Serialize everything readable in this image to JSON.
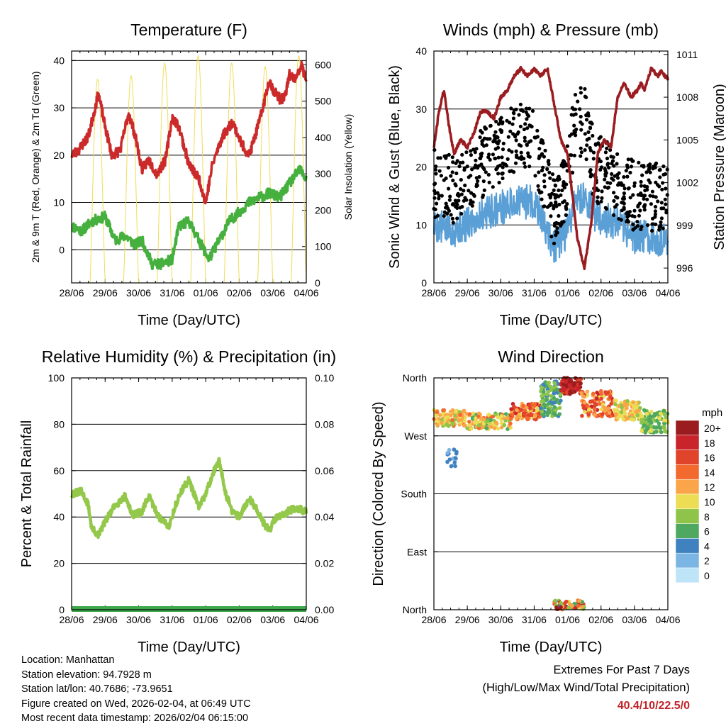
{
  "chart_data": [
    {
      "type": "line",
      "title": "Temperature (F)",
      "xlabel": "Time (Day/UTC)",
      "ylabel": "2m & 9m T (Red, Orange) & 2m Td (Green)",
      "y2label": "Solar Insolation (Yellow)",
      "categories": [
        "28/06",
        "29/06",
        "30/06",
        "31/06",
        "01/06",
        "02/06",
        "03/06",
        "04/06"
      ],
      "ylim": [
        -7,
        42
      ],
      "yticks": [
        0,
        10,
        20,
        30,
        40
      ],
      "y2lim": [
        0,
        638
      ],
      "y2ticks": [
        0,
        100,
        200,
        300,
        400,
        500,
        600
      ],
      "grid": true,
      "series": [
        {
          "name": "2m & 9m T",
          "color": "#cc2a2a",
          "axis": "left",
          "x": [
            0,
            0.2,
            0.5,
            0.8,
            1.0,
            1.2,
            1.45,
            1.7,
            1.9,
            2.1,
            2.3,
            2.55,
            2.8,
            3.0,
            3.2,
            3.5,
            3.8,
            4.0,
            4.2,
            4.5,
            4.8,
            5.1,
            5.3,
            5.6,
            5.9,
            6.0,
            6.2,
            6.35,
            6.5,
            6.7,
            6.85,
            7.0
          ],
          "y": [
            20,
            21,
            24,
            33,
            26,
            20,
            21,
            29,
            24,
            17,
            19,
            16,
            19,
            28,
            26,
            18,
            15,
            10,
            18,
            24,
            27,
            22,
            20,
            27,
            36,
            34,
            32,
            32,
            37,
            36,
            39,
            36
          ]
        },
        {
          "name": "2m Td",
          "color": "#46b03e",
          "axis": "left",
          "x": [
            0,
            0.3,
            0.6,
            1.0,
            1.3,
            1.6,
            1.9,
            2.1,
            2.4,
            2.7,
            3.0,
            3.2,
            3.5,
            3.8,
            4.1,
            4.4,
            4.7,
            5.0,
            5.3,
            5.6,
            5.9,
            6.2,
            6.5,
            6.8,
            7.0
          ],
          "y": [
            5,
            4,
            6,
            7,
            2,
            3,
            1,
            2,
            -3,
            -3,
            -2,
            5,
            6,
            2,
            -2,
            2,
            6,
            8,
            10,
            11,
            12,
            11,
            14,
            17,
            15
          ]
        },
        {
          "name": "Solar Insolation",
          "color": "#f1dc57",
          "axis": "right",
          "daily_peaks": [
            560,
            570,
            605,
            625,
            605,
            595,
            625
          ]
        }
      ]
    },
    {
      "type": "scatter",
      "title": "Winds (mph) & Pressure (mb)",
      "xlabel": "Time (Day/UTC)",
      "ylabel": "Sonic Wind & Gust (Blue, Black)",
      "y2label": "Station Pressure (Maroon)",
      "categories": [
        "28/06",
        "29/06",
        "30/06",
        "31/06",
        "01/06",
        "02/06",
        "03/06",
        "04/06"
      ],
      "ylim": [
        0,
        40
      ],
      "yticks": [
        0,
        10,
        20,
        30,
        40
      ],
      "y2lim": [
        994.96,
        1011.24
      ],
      "y2ticks": [
        996,
        999,
        1002,
        1005,
        1008,
        1011
      ],
      "grid": true,
      "series": [
        {
          "name": "Sonic Wind",
          "color": "#5a9fd6",
          "axis": "left",
          "x": [
            0,
            0.5,
            1.0,
            1.5,
            2.0,
            2.5,
            3.0,
            3.3,
            3.6,
            4.0,
            4.2,
            4.5,
            4.8,
            5.1,
            5.5,
            6.0,
            6.5,
            7.0
          ],
          "y": [
            10,
            9,
            10,
            12,
            13,
            14,
            14,
            10,
            6,
            9,
            14,
            15,
            12,
            11,
            10,
            8,
            8,
            7
          ]
        },
        {
          "name": "Gust",
          "color": "#000000",
          "axis": "left",
          "x": [
            0,
            0.5,
            1.0,
            1.5,
            2.0,
            2.5,
            3.0,
            3.3,
            3.6,
            4.0,
            4.2,
            4.5,
            4.8,
            5.1,
            5.5,
            6.0,
            6.5,
            7.0
          ],
          "y": [
            17,
            16,
            18,
            21,
            23,
            25,
            24,
            18,
            12,
            18,
            27,
            28,
            20,
            19,
            17,
            15,
            15,
            14
          ]
        },
        {
          "name": "Station Pressure",
          "color": "#9a1c20",
          "axis": "right",
          "x": [
            0,
            0.15,
            0.3,
            0.45,
            0.6,
            0.8,
            1.0,
            1.2,
            1.4,
            1.6,
            1.8,
            2.0,
            2.2,
            2.4,
            2.6,
            2.8,
            3.0,
            3.2,
            3.4,
            3.6,
            3.8,
            4.0,
            4.15,
            4.3,
            4.5,
            4.7,
            4.9,
            5.1,
            5.3,
            5.5,
            5.7,
            5.9,
            6.1,
            6.2,
            6.3,
            6.5,
            6.7,
            6.8,
            6.9,
            7.0
          ],
          "y": [
            1004.5,
            1007,
            1008.5,
            1006,
            1004,
            1005,
            1004.5,
            1005.5,
            1007,
            1007,
            1006.5,
            1008,
            1008.5,
            1009.5,
            1010,
            1009.5,
            1010,
            1009.5,
            1010,
            1007.5,
            1005,
            1004,
            1001,
            998,
            996,
            999,
            1004,
            1005,
            1004.5,
            1008,
            1009,
            1008,
            1008.5,
            1009,
            1008.5,
            1010,
            1009.5,
            1009.8,
            1009.5,
            1009.3
          ]
        }
      ]
    },
    {
      "type": "line",
      "title": "Relative Humidity (%) & Precipitation (in)",
      "xlabel": "Time (Day/UTC)",
      "ylabel": "Percent & Total Rainfall",
      "categories": [
        "28/06",
        "29/06",
        "30/06",
        "31/06",
        "01/06",
        "02/06",
        "03/06",
        "04/06"
      ],
      "ylim": [
        0,
        100
      ],
      "yticks": [
        0,
        20,
        40,
        60,
        80,
        100
      ],
      "y2lim": [
        0,
        0.1
      ],
      "y2ticks": [
        "0.00",
        "0.02",
        "0.04",
        "0.06",
        "0.08",
        "0.10"
      ],
      "grid": true,
      "series": [
        {
          "name": "Relative Humidity",
          "color": "#93c84a",
          "axis": "left",
          "x": [
            0,
            0.3,
            0.5,
            0.6,
            0.8,
            1.0,
            1.3,
            1.6,
            1.8,
            2.1,
            2.3,
            2.6,
            2.9,
            3.1,
            3.3,
            3.5,
            3.8,
            4.0,
            4.25,
            4.4,
            4.6,
            4.8,
            5.0,
            5.3,
            5.5,
            5.7,
            5.9,
            6.1,
            6.4,
            6.7,
            7.0
          ],
          "y": [
            50,
            51,
            45,
            35,
            32,
            38,
            45,
            49,
            41,
            42,
            49,
            40,
            36,
            45,
            52,
            56,
            44,
            50,
            60,
            64,
            50,
            42,
            40,
            48,
            44,
            38,
            34,
            40,
            42,
            44,
            42
          ]
        },
        {
          "name": "Total Precipitation",
          "color": "#3ea84a",
          "axis": "right",
          "x": [
            0,
            7
          ],
          "y": [
            0,
            0
          ]
        }
      ]
    },
    {
      "type": "scatter",
      "title": "Wind Direction",
      "xlabel": "Time (Day/UTC)",
      "ylabel": "Direction (Colored By Speed)",
      "categories": [
        "28/06",
        "29/06",
        "30/06",
        "31/06",
        "01/06",
        "02/06",
        "03/06",
        "04/06"
      ],
      "ylim": [
        0,
        360
      ],
      "ytick_values": [
        0,
        90,
        180,
        270,
        360
      ],
      "ytick_labels": [
        "North",
        "East",
        "South",
        "West",
        "North"
      ],
      "grid": true,
      "clusters": [
        {
          "x": [
            0,
            1.0
          ],
          "dir": [
            285,
            310
          ],
          "speed": [
            8,
            14
          ]
        },
        {
          "x": [
            0.4,
            0.7
          ],
          "dir": [
            215,
            250
          ],
          "speed": [
            2,
            5
          ]
        },
        {
          "x": [
            1.0,
            2.3
          ],
          "dir": [
            280,
            305
          ],
          "speed": [
            6,
            14
          ]
        },
        {
          "x": [
            2.3,
            3.2
          ],
          "dir": [
            295,
            320
          ],
          "speed": [
            10,
            18
          ]
        },
        {
          "x": [
            3.2,
            3.8
          ],
          "dir": [
            300,
            355
          ],
          "speed": [
            4,
            9
          ]
        },
        {
          "x": [
            3.8,
            4.4
          ],
          "dir": [
            335,
            360
          ],
          "speed": [
            16,
            22
          ]
        },
        {
          "x": [
            4.4,
            5.4
          ],
          "dir": [
            300,
            340
          ],
          "speed": [
            10,
            18
          ]
        },
        {
          "x": [
            5.4,
            6.2
          ],
          "dir": [
            295,
            325
          ],
          "speed": [
            8,
            13
          ]
        },
        {
          "x": [
            6.2,
            7.0
          ],
          "dir": [
            275,
            310
          ],
          "speed": [
            5,
            10
          ]
        },
        {
          "x": [
            3.6,
            4.5
          ],
          "dir": [
            0,
            15
          ],
          "speed": [
            4,
            20
          ]
        }
      ],
      "colorbar": {
        "title": "mph",
        "labels": [
          "20+",
          "18",
          "16",
          "14",
          "12",
          "10",
          "8",
          "6",
          "4",
          "2",
          "0"
        ],
        "colors": [
          "#9b1c1e",
          "#c9242b",
          "#e0442b",
          "#f26a2e",
          "#fba54a",
          "#ecdd55",
          "#8fc44a",
          "#4ea860",
          "#3f82bf",
          "#7ab5e3",
          "#bde4f7"
        ]
      }
    }
  ],
  "footer": {
    "location": "Location: Manhattan",
    "elevation": "Station elevation: 94.7928 m",
    "latlon": "Station lat/lon: 40.7686; -73.9651",
    "created": "Figure created on Wed, 2026-02-04, at 06:49 UTC",
    "recent": "Most recent data timestamp: 2026/02/04 06:15:00"
  },
  "extremes": {
    "title": "Extremes For Past 7 Days",
    "subtitle": "(High/Low/Max Wind/Total Precipitation)",
    "values": "40.4/10/22.5/0"
  }
}
